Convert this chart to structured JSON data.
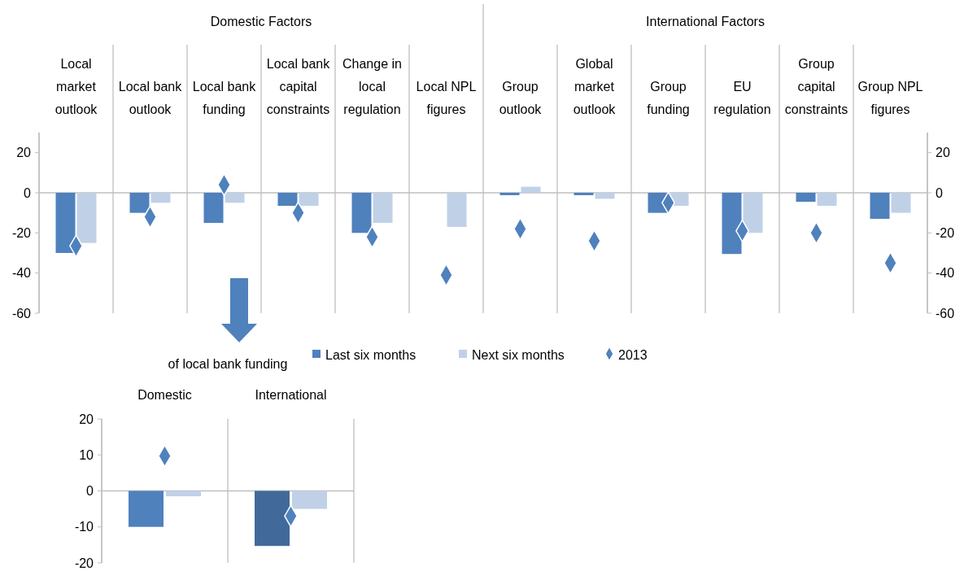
{
  "chart_data": [
    {
      "type": "bar",
      "annotations": [
        "Domestic Factors",
        "International Factors"
      ],
      "categories": [
        "Local market outlook",
        "Local bank outlook",
        "Local bank funding",
        "Local bank capital constraints",
        "Change in local regulation",
        "Local NPL figures",
        "Group outlook",
        "Global market outlook",
        "Group funding",
        "EU regulation",
        "Group capital constraints",
        "Group NPL figures"
      ],
      "series": [
        {
          "name": "Last six months",
          "color": "#4f81bd",
          "values": [
            -30,
            -10,
            -15,
            -6.5,
            -20,
            null,
            -1.2,
            -1.2,
            -10,
            -30.5,
            -4.5,
            -13
          ]
        },
        {
          "name": "Next six months",
          "color": "#c0d1e7",
          "values": [
            -25,
            -5,
            -5,
            -6.5,
            -15,
            -17,
            3,
            -3,
            -6.5,
            -20,
            -6.5,
            -10
          ]
        },
        {
          "name": "2013",
          "type": "scatter",
          "marker": "diamond",
          "color": "#4f81bd",
          "values": [
            -26.5,
            -12,
            4,
            -10,
            -22,
            -41,
            -18,
            -24,
            -5,
            -19,
            -20,
            -35
          ]
        }
      ],
      "ylim": [
        -60,
        30
      ],
      "yticks": [
        -60,
        -40,
        -20,
        0,
        20
      ],
      "y2lim": [
        -60,
        30
      ],
      "y2ticks": [
        -60,
        -40,
        -20,
        0,
        20
      ],
      "legend": "bottom"
    },
    {
      "type": "bar",
      "title": "of local bank funding",
      "categories": [
        "Domestic",
        "International"
      ],
      "series": [
        {
          "colors": [
            "#4f81bd",
            "#41699a"
          ],
          "values": [
            -10,
            -15.3
          ]
        },
        {
          "color": "#c0d1e7",
          "values": [
            -1.5,
            -5
          ]
        },
        {
          "type": "scatter",
          "marker": "diamond",
          "color": "#4f81bd",
          "values": [
            9.7,
            -7
          ]
        }
      ],
      "ylim": [
        -20,
        20
      ],
      "yticks": [
        -20,
        -10,
        0,
        10,
        20
      ]
    }
  ]
}
